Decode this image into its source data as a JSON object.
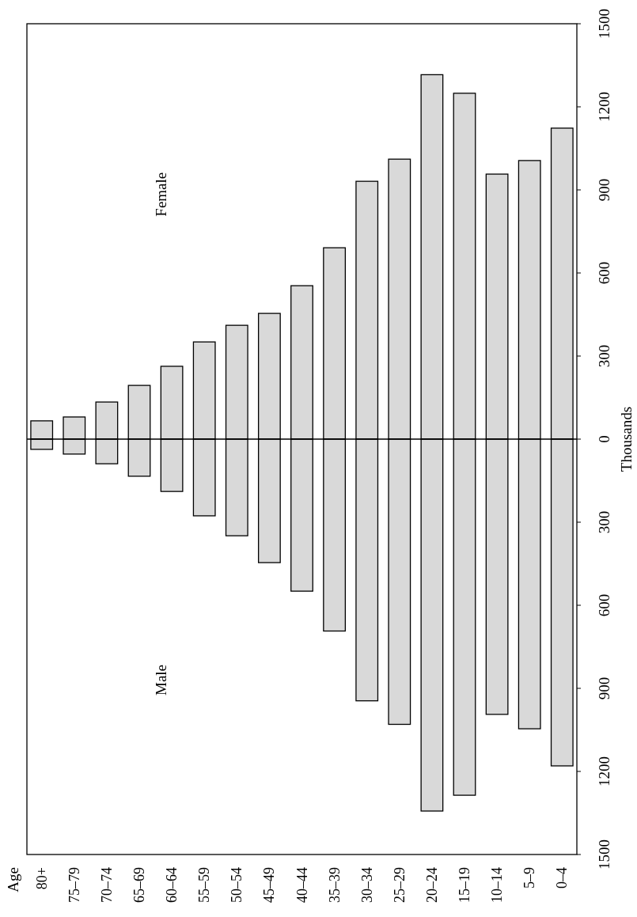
{
  "chart_data": {
    "type": "bar",
    "stacked": true,
    "ylabel": "Thousands",
    "annotations": [
      "Age",
      "Female",
      "Male"
    ],
    "categories": [
      "80+",
      "75–79",
      "70–74",
      "65–69",
      "60–64",
      "55–59",
      "50–54",
      "45–49",
      "40–44",
      "35–39",
      "30–34",
      "25–29",
      "20–24",
      "15–19",
      "10–14",
      "5–9",
      "0–4"
    ],
    "series": [
      {
        "color": "#d9d9d9",
        "values": [
          66,
          80,
          134,
          194,
          263,
          351,
          411,
          454,
          554,
          691,
          931,
          1011,
          1316,
          1249,
          957,
          1006,
          1123
        ]
      },
      {
        "color": "#d9d9d9",
        "values": [
          -37,
          -54,
          -89,
          -134,
          -189,
          -277,
          -349,
          -446,
          -549,
          -693,
          -945,
          -1030,
          -1343,
          -1286,
          -994,
          -1046,
          -1180
        ]
      }
    ],
    "ylim": [
      -1500,
      1500
    ],
    "yticks": [
      {
        "value": -1500,
        "label": "1500"
      },
      {
        "value": -1200,
        "label": "1200"
      },
      {
        "value": -900,
        "label": "900"
      },
      {
        "value": -600,
        "label": "600"
      },
      {
        "value": -300,
        "label": "300"
      },
      0,
      300,
      600,
      900,
      1200,
      1500
    ],
    "log": false
  }
}
